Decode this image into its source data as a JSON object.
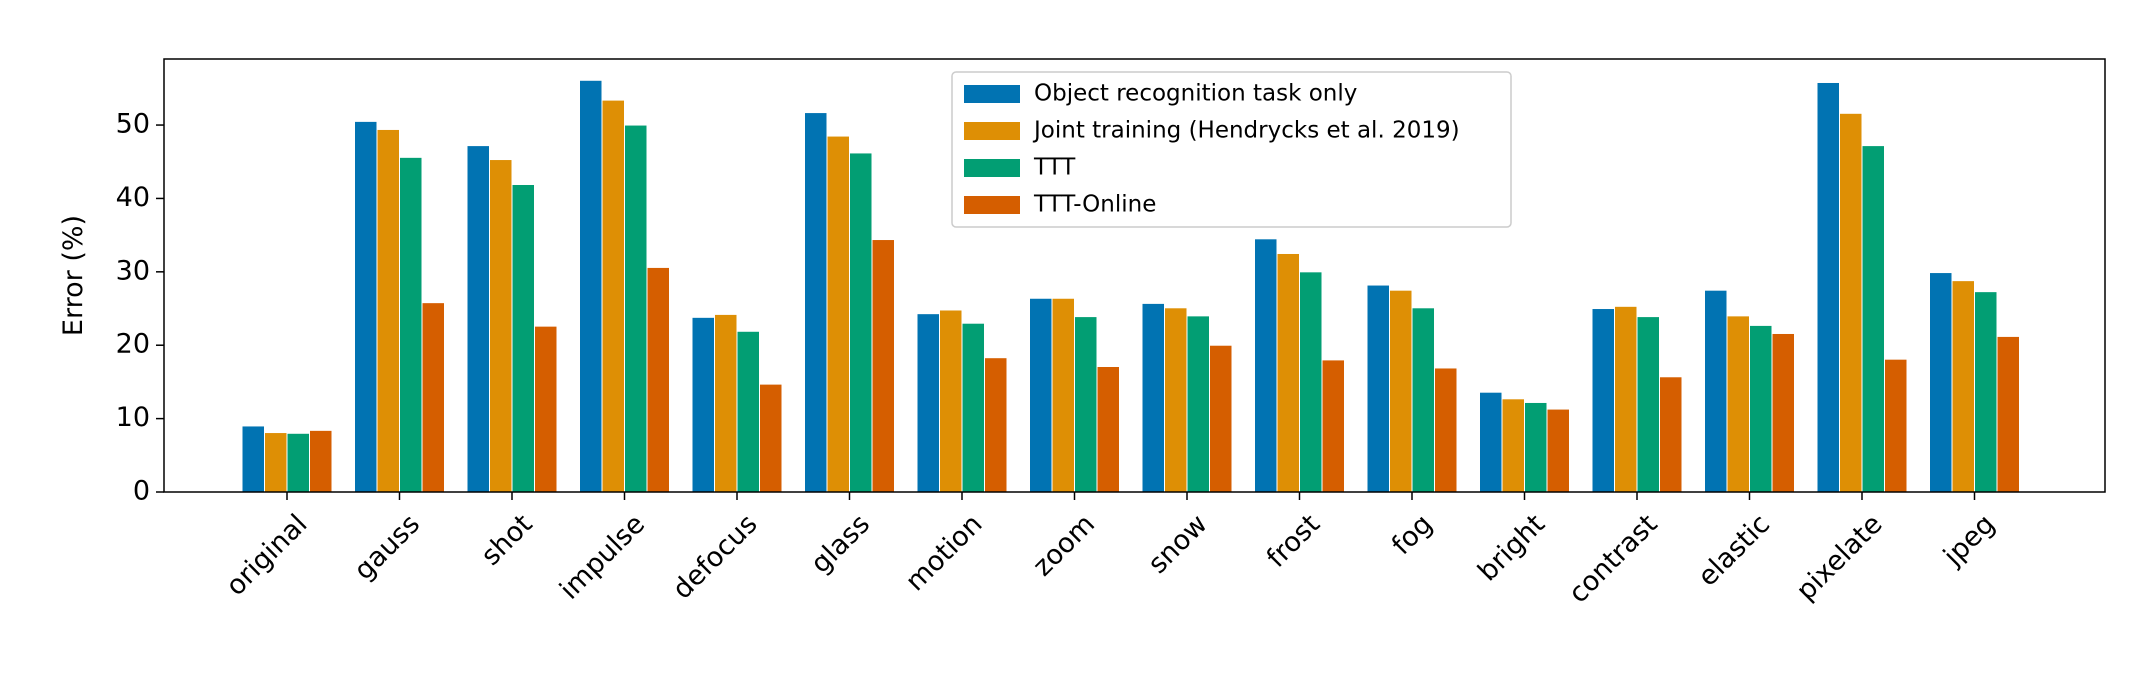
{
  "chart_data": {
    "type": "bar",
    "ylabel": "Error (%)",
    "categories": [
      "original",
      "gauss",
      "shot",
      "impulse",
      "defocus",
      "glass",
      "motion",
      "zoom",
      "snow",
      "frost",
      "fog",
      "bright",
      "contrast",
      "elastic",
      "pixelate",
      "jpeg"
    ],
    "series": [
      {
        "name": "Object recognition task only",
        "color": "#0173b2",
        "values": [
          9.0,
          50.5,
          47.2,
          56.1,
          23.8,
          51.7,
          24.3,
          26.4,
          25.7,
          34.5,
          28.2,
          13.6,
          25.0,
          27.5,
          55.8,
          29.9
        ]
      },
      {
        "name": "Joint training (Hendrycks et al. 2019)",
        "color": "#de8f05",
        "values": [
          8.1,
          49.4,
          45.3,
          53.4,
          24.2,
          48.5,
          24.8,
          26.4,
          25.1,
          32.5,
          27.5,
          12.7,
          25.3,
          24.0,
          51.6,
          28.8
        ]
      },
      {
        "name": "TTT",
        "color": "#029e73",
        "values": [
          8.0,
          45.6,
          41.9,
          50.0,
          21.9,
          46.2,
          23.0,
          23.9,
          24.0,
          30.0,
          25.1,
          12.2,
          23.9,
          22.7,
          47.2,
          27.3
        ]
      },
      {
        "name": "TTT-Online",
        "color": "#d55e00",
        "values": [
          8.4,
          25.8,
          22.6,
          30.6,
          14.7,
          34.4,
          18.3,
          17.1,
          20.0,
          18.0,
          16.9,
          11.3,
          15.7,
          21.6,
          18.1,
          21.2
        ]
      }
    ],
    "ylim": [
      0,
      59
    ],
    "yticks": [
      0,
      10,
      20,
      30,
      40,
      50
    ],
    "legend": "upper center"
  }
}
